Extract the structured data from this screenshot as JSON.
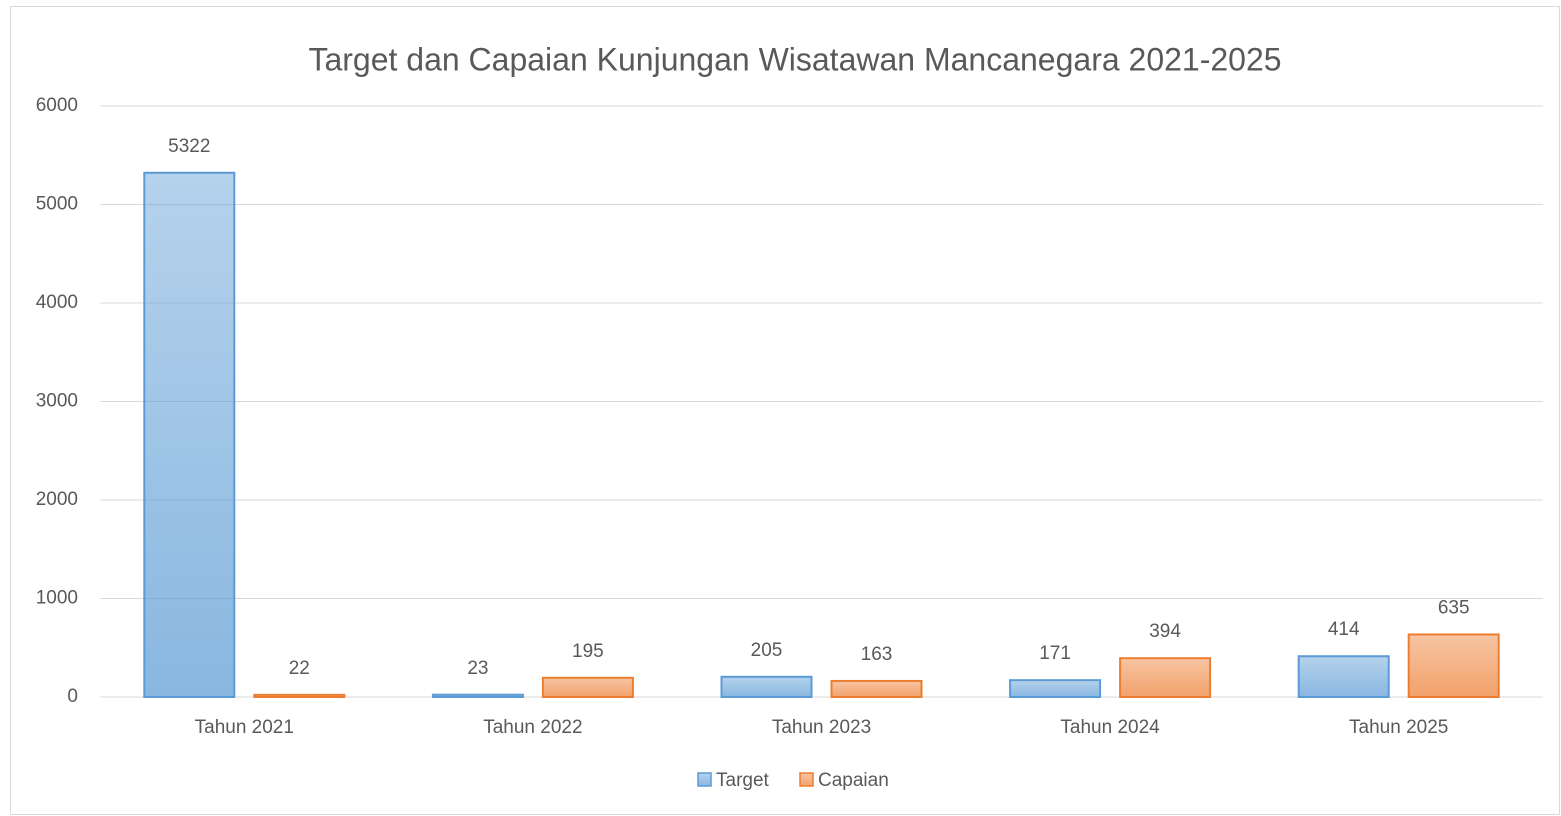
{
  "chart_data": {
    "type": "bar",
    "title": "Target dan Capaian Kunjungan Wisatawan Mancanegara 2021-2025",
    "categories": [
      "Tahun 2021",
      "Tahun 2022",
      "Tahun 2023",
      "Tahun 2024",
      "Tahun 2025"
    ],
    "series": [
      {
        "name": "Target",
        "color": "#5b9bd5",
        "values": [
          5322,
          23,
          205,
          171,
          414
        ]
      },
      {
        "name": "Capaian",
        "color": "#ed7d31",
        "values": [
          22,
          195,
          163,
          394,
          635
        ]
      }
    ],
    "ylim": [
      0,
      6000
    ],
    "yticks": [
      0,
      1000,
      2000,
      3000,
      4000,
      5000,
      6000
    ],
    "grid": true,
    "legend": "bottom"
  }
}
